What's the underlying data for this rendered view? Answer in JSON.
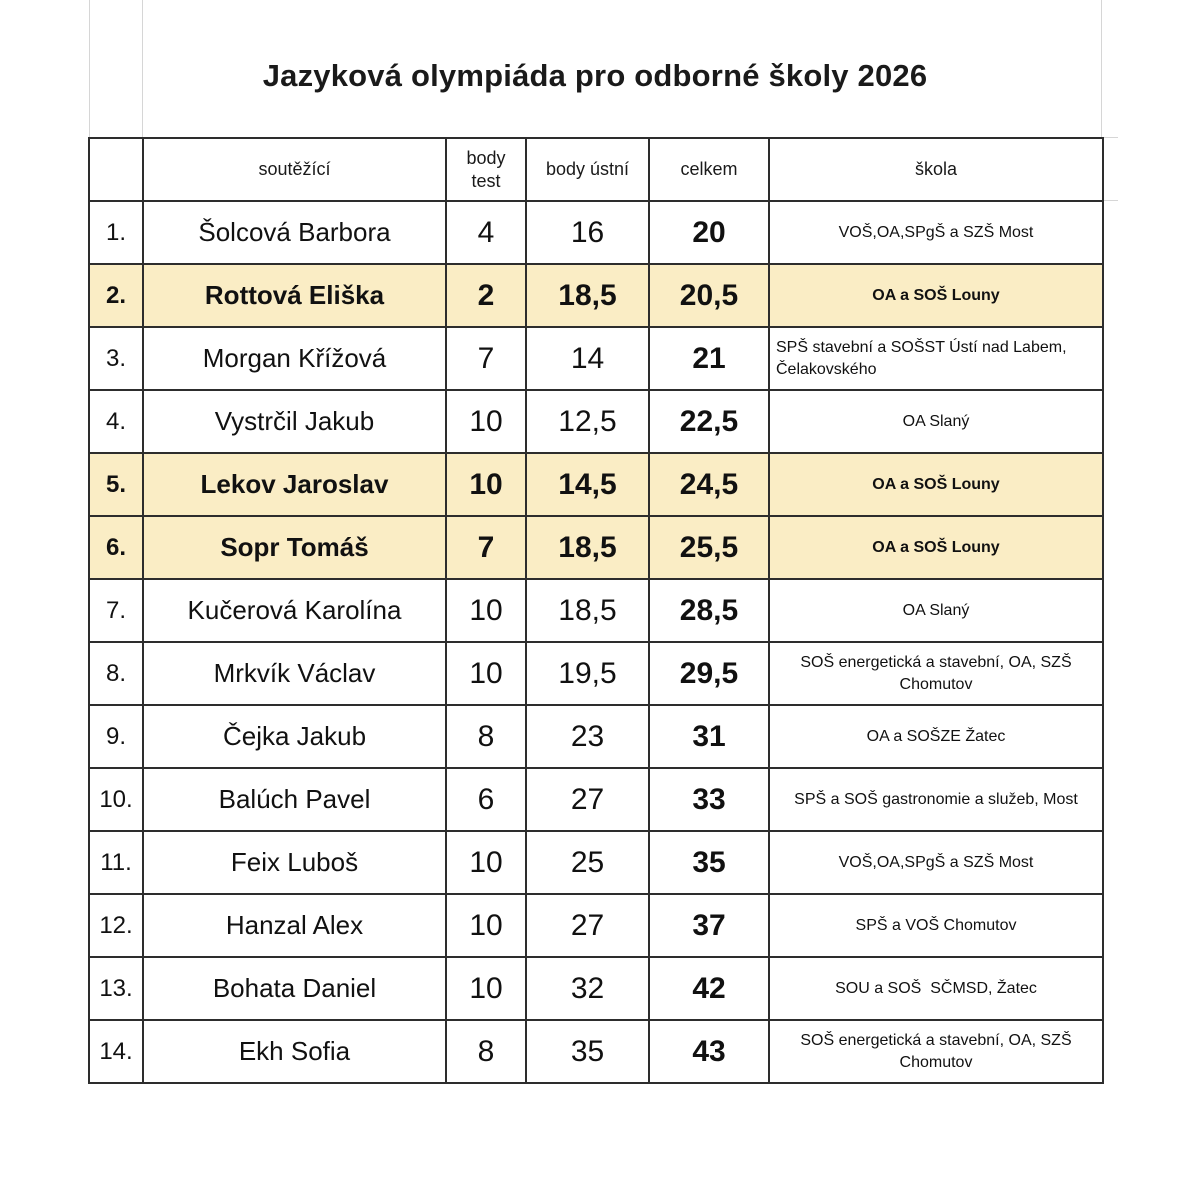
{
  "title": "Jazyková olympiáda pro odborné školy 2026",
  "table": {
    "highlight_color": "#FAEDC5",
    "border_color": "#2d2d2d",
    "headers": [
      {
        "id": "rank",
        "label": ""
      },
      {
        "id": "soutezici",
        "label": "soutěžící"
      },
      {
        "id": "body-test",
        "label": "body\ntest"
      },
      {
        "id": "body-ustni",
        "label": "body ústní"
      },
      {
        "id": "celkem",
        "label": "celkem"
      },
      {
        "id": "skola",
        "label": "škola"
      }
    ],
    "rows": [
      {
        "rank": "1.",
        "name": "Šolcová Barbora",
        "test": "4",
        "oral": "16",
        "total": "20",
        "school": "VOŠ,OA,SPgŠ a SZŠ Most",
        "highlight": false
      },
      {
        "rank": "2.",
        "name": "Rottová Eliška",
        "test": "2",
        "oral": "18,5",
        "total": "20,5",
        "school": "OA a SOŠ Louny",
        "highlight": true
      },
      {
        "rank": "3.",
        "name": "Morgan Křížová",
        "test": "7",
        "oral": "14",
        "total": "21",
        "school": "SPŠ stavební a SOŠST Ústí nad Labem, Čelakovského",
        "highlight": false,
        "school_align": "left"
      },
      {
        "rank": "4.",
        "name": "Vystrčil Jakub",
        "test": "10",
        "oral": "12,5",
        "total": "22,5",
        "school": "OA Slaný",
        "highlight": false
      },
      {
        "rank": "5.",
        "name": "Lekov Jaroslav",
        "test": "10",
        "oral": "14,5",
        "total": "24,5",
        "school": "OA a SOŠ Louny",
        "highlight": true
      },
      {
        "rank": "6.",
        "name": "Sopr Tomáš",
        "test": "7",
        "oral": "18,5",
        "total": "25,5",
        "school": "OA a SOŠ Louny",
        "highlight": true
      },
      {
        "rank": "7.",
        "name": "Kučerová Karolína",
        "test": "10",
        "oral": "18,5",
        "total": "28,5",
        "school": "OA Slaný",
        "highlight": false
      },
      {
        "rank": "8.",
        "name": "Mrkvík Václav",
        "test": "10",
        "oral": "19,5",
        "total": "29,5",
        "school": "SOŠ energetická a stavební, OA, SZŠ Chomutov",
        "highlight": false
      },
      {
        "rank": "9.",
        "name": "Čejka Jakub",
        "test": "8",
        "oral": "23",
        "total": "31",
        "school": "OA a SOŠZE Žatec",
        "highlight": false
      },
      {
        "rank": "10.",
        "name": "Balúch Pavel",
        "test": "6",
        "oral": "27",
        "total": "33",
        "school": "SPŠ a SOŠ gastronomie a služeb, Most",
        "highlight": false
      },
      {
        "rank": "11.",
        "name": "Feix Luboš",
        "test": "10",
        "oral": "25",
        "total": "35",
        "school": "VOŠ,OA,SPgŠ a SZŠ Most",
        "highlight": false
      },
      {
        "rank": "12.",
        "name": "Hanzal Alex",
        "test": "10",
        "oral": "27",
        "total": "37",
        "school": "SPŠ a VOŠ Chomutov",
        "highlight": false
      },
      {
        "rank": "13.",
        "name": "Bohata Daniel",
        "test": "10",
        "oral": "32",
        "total": "42",
        "school": "SOU a SOŠ  SČMSD, Žatec",
        "highlight": false
      },
      {
        "rank": "14.",
        "name": "Ekh Sofia",
        "test": "8",
        "oral": "35",
        "total": "43",
        "school": "SOŠ energetická a stavební, OA, SZŠ Chomutov",
        "highlight": false
      }
    ]
  }
}
